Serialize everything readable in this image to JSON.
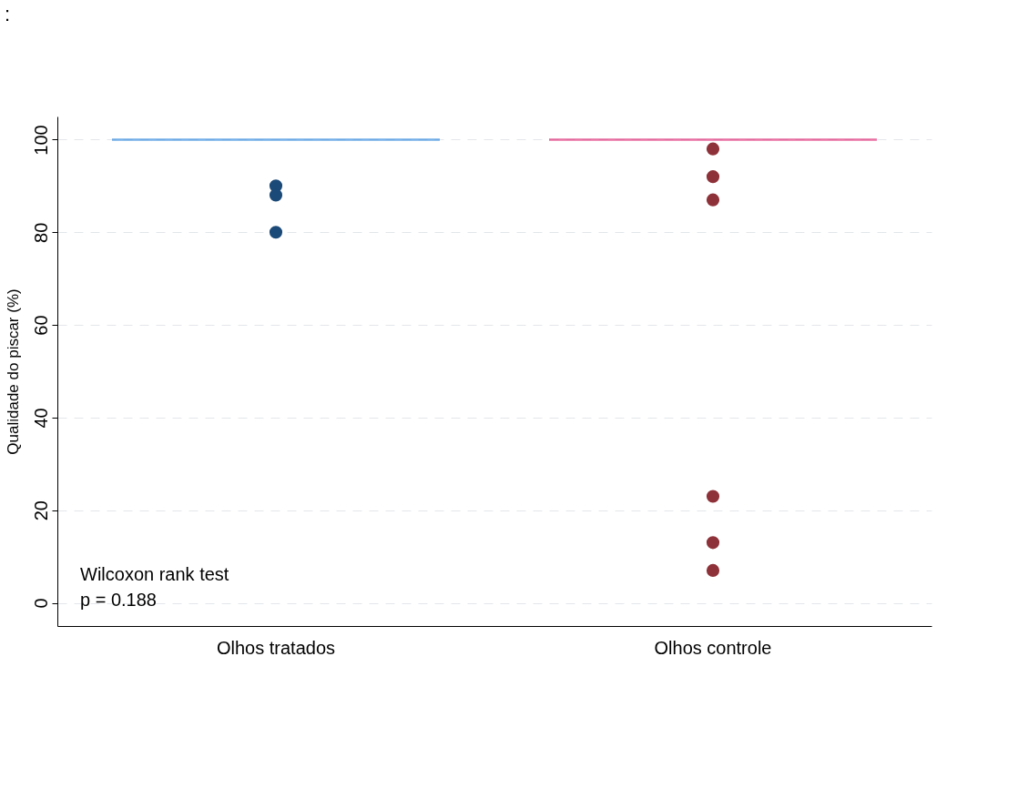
{
  "chart_data": {
    "type": "scatter",
    "title": ":",
    "ylabel": "Qualidade do piscar (%)",
    "categories": [
      "Olhos tratados",
      "Olhos controle"
    ],
    "series": [
      {
        "type": "box",
        "color": "#3b8de0",
        "boxes": [
          {
            "low": 100,
            "q1": 100,
            "median": 100,
            "q3": 100,
            "high": 100
          },
          null
        ]
      },
      {
        "type": "box",
        "color": "#e0337a",
        "boxes": [
          null,
          {
            "low": 100,
            "q1": 100,
            "median": 100,
            "q3": 100,
            "high": 100
          }
        ]
      },
      {
        "color": "#1c4a78",
        "x": [
          "Olhos tratados",
          "Olhos tratados",
          "Olhos tratados"
        ],
        "values": [
          90,
          88,
          80
        ]
      },
      {
        "color": "#8e3138",
        "x": [
          "Olhos controle",
          "Olhos controle",
          "Olhos controle",
          "Olhos controle",
          "Olhos controle",
          "Olhos controle"
        ],
        "values": [
          98,
          92,
          87,
          23,
          13,
          7
        ]
      }
    ],
    "ylim": [
      -5,
      105
    ],
    "yticks": [
      0,
      20,
      40,
      60,
      80,
      100
    ],
    "grid": "y",
    "marker": "circle",
    "annotations": [
      "Wilcoxon rank test",
      "p = 0.188"
    ]
  }
}
